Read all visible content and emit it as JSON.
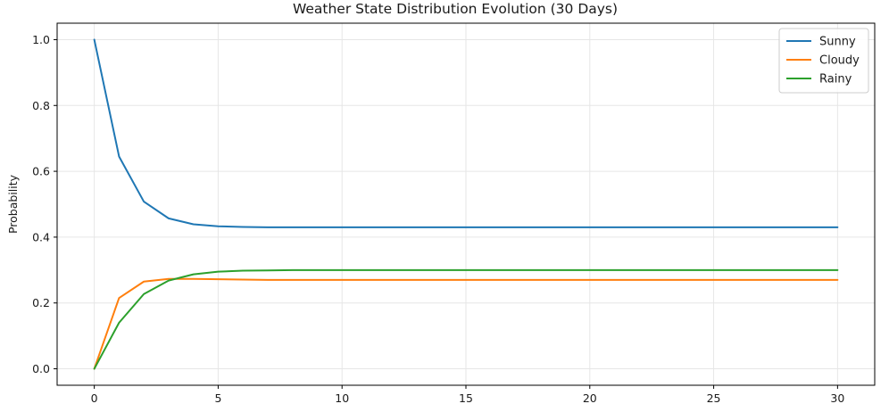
{
  "chart_data": {
    "type": "line",
    "title": "Weather State Distribution Evolution (30 Days)",
    "xlabel": "",
    "ylabel": "Probability",
    "xlim": [
      -1.5,
      31.5
    ],
    "ylim": [
      -0.05,
      1.05
    ],
    "xticks": [
      0,
      5,
      10,
      15,
      20,
      25,
      30
    ],
    "yticks": [
      0.0,
      0.2,
      0.4,
      0.6,
      0.8,
      1.0
    ],
    "xtick_labels": [
      "0",
      "5",
      "10",
      "15",
      "20",
      "25",
      "30"
    ],
    "ytick_labels": [
      "0.0",
      "0.2",
      "0.4",
      "0.6",
      "0.8",
      "1.0"
    ],
    "grid": true,
    "legend": {
      "location": "upper-right",
      "entries": [
        "Sunny",
        "Cloudy",
        "Rainy"
      ]
    },
    "x": [
      0,
      1,
      2,
      3,
      4,
      5,
      6,
      7,
      8,
      9,
      10,
      11,
      12,
      13,
      14,
      15,
      16,
      17,
      18,
      19,
      20,
      21,
      22,
      23,
      24,
      25,
      26,
      27,
      28,
      29,
      30
    ],
    "series": [
      {
        "name": "Sunny",
        "color": "#1f77b4",
        "values": [
          1.0,
          0.645,
          0.508,
          0.457,
          0.439,
          0.433,
          0.431,
          0.43,
          0.43,
          0.43,
          0.43,
          0.43,
          0.43,
          0.43,
          0.43,
          0.43,
          0.43,
          0.43,
          0.43,
          0.43,
          0.43,
          0.43,
          0.43,
          0.43,
          0.43,
          0.43,
          0.43,
          0.43,
          0.43,
          0.43,
          0.43
        ]
      },
      {
        "name": "Cloudy",
        "color": "#ff7f0e",
        "values": [
          0.0,
          0.215,
          0.265,
          0.273,
          0.273,
          0.272,
          0.271,
          0.27,
          0.27,
          0.27,
          0.27,
          0.27,
          0.27,
          0.27,
          0.27,
          0.27,
          0.27,
          0.27,
          0.27,
          0.27,
          0.27,
          0.27,
          0.27,
          0.27,
          0.27,
          0.27,
          0.27,
          0.27,
          0.27,
          0.27,
          0.27
        ]
      },
      {
        "name": "Rainy",
        "color": "#2ca02c",
        "values": [
          0.0,
          0.14,
          0.227,
          0.268,
          0.287,
          0.295,
          0.298,
          0.299,
          0.3,
          0.3,
          0.3,
          0.3,
          0.3,
          0.3,
          0.3,
          0.3,
          0.3,
          0.3,
          0.3,
          0.3,
          0.3,
          0.3,
          0.3,
          0.3,
          0.3,
          0.3,
          0.3,
          0.3,
          0.3,
          0.3,
          0.3
        ]
      }
    ]
  }
}
